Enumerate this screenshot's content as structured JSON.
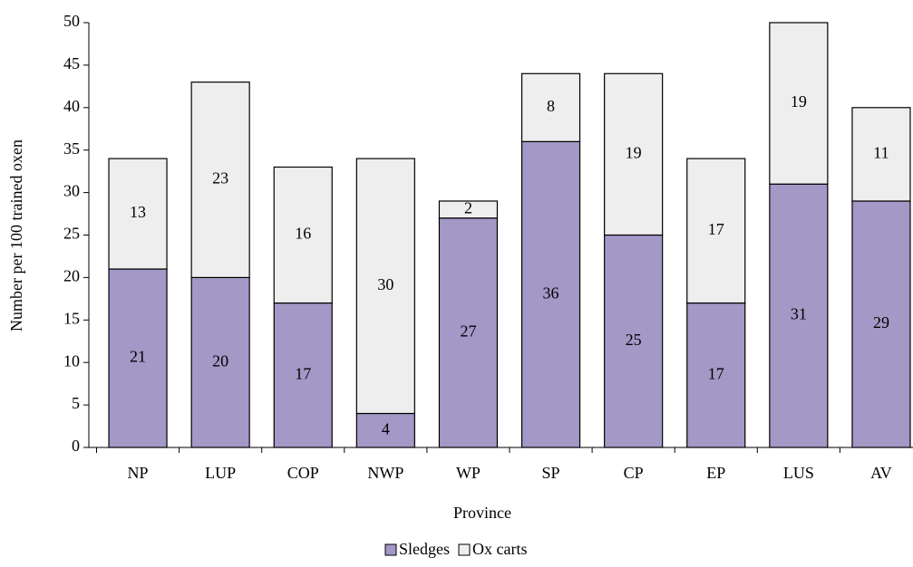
{
  "chart_data": {
    "type": "stacked-bar",
    "categories": [
      "NP",
      "LUP",
      "COP",
      "NWP",
      "WP",
      "SP",
      "CP",
      "EP",
      "LUS",
      "AV"
    ],
    "series": [
      {
        "name": "Sledges",
        "color": "#a398c6",
        "values": [
          21,
          20,
          17,
          4,
          27,
          36,
          25,
          17,
          31,
          29
        ]
      },
      {
        "name": "Ox carts",
        "color": "#eeeeee",
        "values": [
          13,
          23,
          16,
          30,
          2,
          8,
          19,
          17,
          19,
          11
        ]
      }
    ],
    "ylim": [
      0,
      50
    ],
    "yticks": [
      0,
      5,
      10,
      15,
      20,
      25,
      30,
      35,
      40,
      45,
      50
    ],
    "xlabel": "Province",
    "ylabel": "Number per 100 trained oxen",
    "legend": "bottom",
    "grid": false
  }
}
